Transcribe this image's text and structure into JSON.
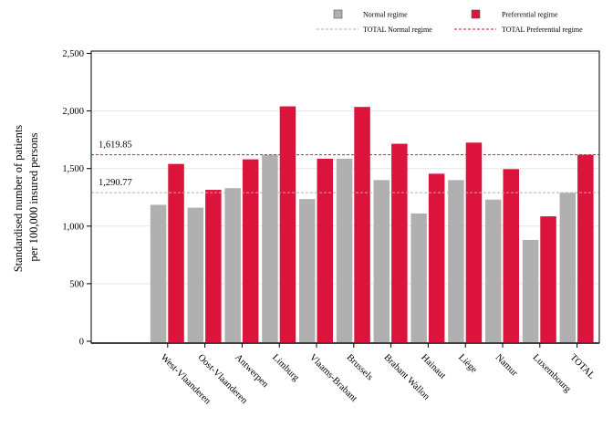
{
  "chart_data": {
    "type": "bar",
    "ylabel_lines": [
      "Standardised number of patients",
      "per 100,000 insured persons"
    ],
    "xlabel": "",
    "ylim": [
      0,
      2500
    ],
    "yticks": [
      0,
      500,
      1000,
      1500,
      2000,
      2500
    ],
    "ytick_labels": [
      "0",
      "500",
      "1,000",
      "1,500",
      "2,000",
      "2,500"
    ],
    "grid": true,
    "legend_position": "top",
    "categories": [
      "West-Vlaanderen",
      "Oost-Vlaanderen",
      "Antwerpen",
      "Limburg",
      "Vlaams-Brabant",
      "Brussels",
      "Brabant Wallon",
      "Hainaut",
      "Liège",
      "Namur",
      "Luxembourg",
      "TOTAL"
    ],
    "series": [
      {
        "name": "Normal regime",
        "color": "#b0b0b0",
        "values": [
          1185,
          1160,
          1330,
          1620,
          1235,
          1585,
          1400,
          1110,
          1400,
          1230,
          880,
          1290
        ]
      },
      {
        "name": "Preferential regime",
        "color": "#dc143c",
        "values": [
          1540,
          1315,
          1580,
          2040,
          1585,
          2035,
          1715,
          1455,
          1725,
          1495,
          1085,
          1620
        ]
      }
    ],
    "reference_lines": [
      {
        "name": "TOTAL Normal regime",
        "value": 1290.77,
        "label": "1,290.77",
        "color": "#b0b0b0",
        "style": "dashed"
      },
      {
        "name": "TOTAL Preferential regime",
        "value": 1619.85,
        "label": "1,619.85",
        "color": "#dc143c",
        "style": "dashed"
      }
    ]
  }
}
